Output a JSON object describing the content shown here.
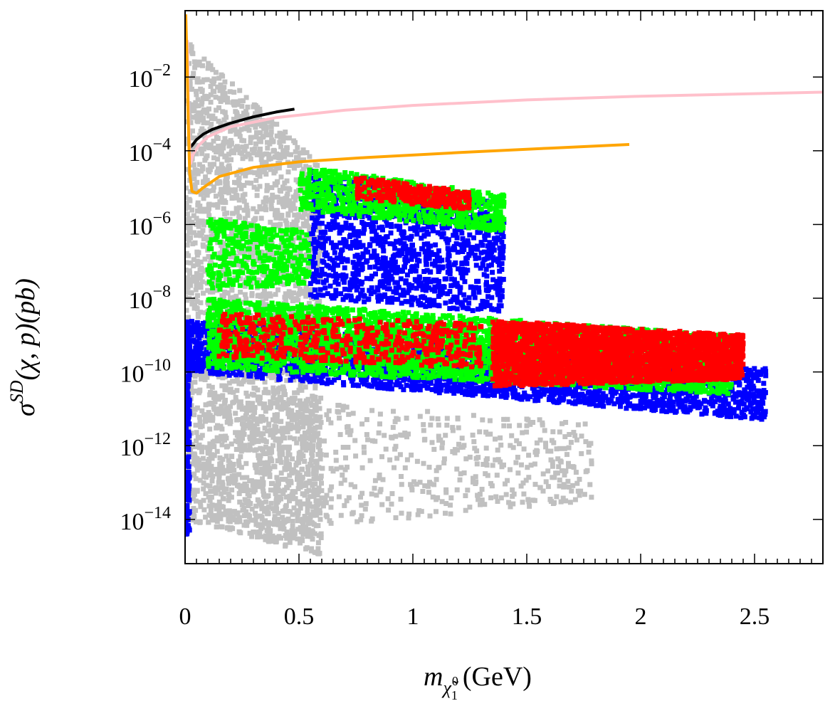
{
  "chart_data": {
    "type": "scatter",
    "title": "",
    "xlabel": {
      "base": "m",
      "sub": "χ̃",
      "subsub": "1",
      "supsub": "0",
      "unit": "(GeV)"
    },
    "ylabel": {
      "base": "σ",
      "sup": "SD",
      "rest": "(χ, p)(pb)"
    },
    "xlim": [
      0,
      2.8
    ],
    "ylim_log10": [
      -15.2,
      -0.2
    ],
    "x_ticks": [
      {
        "value": 0,
        "label": "0"
      },
      {
        "value": 0.5,
        "label": "0.5"
      },
      {
        "value": 1,
        "label": "1"
      },
      {
        "value": 1.5,
        "label": "1.5"
      },
      {
        "value": 2,
        "label": "2"
      },
      {
        "value": 2.5,
        "label": "2.5"
      }
    ],
    "y_ticks": [
      {
        "exp": -2,
        "base": "10",
        "sup": "−2"
      },
      {
        "exp": -4,
        "base": "10",
        "sup": "−4"
      },
      {
        "exp": -6,
        "base": "10",
        "sup": "−6"
      },
      {
        "exp": -8,
        "base": "10",
        "sup": "−8"
      },
      {
        "exp": -10,
        "base": "10",
        "sup": "−10"
      },
      {
        "exp": -12,
        "base": "10",
        "sup": "−12"
      },
      {
        "exp": -14,
        "base": "10",
        "sup": "−14"
      }
    ],
    "colors": {
      "gray": "#c0c0c0",
      "blue": "#0000ff",
      "green": "#00ff00",
      "red": "#ff0000",
      "black_curve": "#000000",
      "pink_curve": "#ffc0cb",
      "orange_curve": "#ffa500"
    },
    "scatter_regions": [
      {
        "name": "gray-spike",
        "color": "gray",
        "x": [
          0.002,
          0.6
        ],
        "y_top": [
          -1.0,
          -4.4
        ],
        "y_bot": [
          -14.0,
          -15.0
        ],
        "density": 2800
      },
      {
        "name": "gray-lower-tail",
        "color": "gray",
        "x": [
          0.1,
          1.8
        ],
        "y_top": [
          -10.6,
          -11.4
        ],
        "y_bot": [
          -14.5,
          -13.5
        ],
        "density": 600
      },
      {
        "name": "blue-upper-band",
        "color": "blue",
        "x": [
          0.55,
          1.4
        ],
        "y_top": [
          -4.5,
          -5.4
        ],
        "y_bot": [
          -8.0,
          -8.4
        ],
        "density": 1200
      },
      {
        "name": "blue-lower-band",
        "color": "blue",
        "x": [
          0.0,
          2.55
        ],
        "y_top": [
          -8.6,
          -9.9
        ],
        "y_bot": [
          -10.0,
          -11.3
        ],
        "density": 2600
      },
      {
        "name": "blue-left-edge",
        "color": "blue",
        "x": [
          0.0,
          0.02
        ],
        "y_top": [
          -8.6,
          -8.6
        ],
        "y_bot": [
          -14.5,
          -14.5
        ],
        "density": 200
      },
      {
        "name": "green-upper-band",
        "color": "green",
        "x": [
          0.5,
          1.4
        ],
        "y_top": [
          -4.4,
          -5.2
        ],
        "y_bot": [
          -5.6,
          -6.2
        ],
        "density": 700
      },
      {
        "name": "green-mid-cloud",
        "color": "green",
        "x": [
          0.1,
          0.55
        ],
        "y_top": [
          -5.8,
          -6.2
        ],
        "y_bot": [
          -7.8,
          -7.6
        ],
        "density": 350
      },
      {
        "name": "green-main-band",
        "color": "green",
        "x": [
          0.1,
          2.4
        ],
        "y_top": [
          -8.0,
          -9.0
        ],
        "y_bot": [
          -9.9,
          -10.6
        ],
        "density": 3000
      },
      {
        "name": "red-upper-band",
        "color": "red",
        "x": [
          0.75,
          1.25
        ],
        "y_top": [
          -4.7,
          -5.1
        ],
        "y_bot": [
          -5.3,
          -5.6
        ],
        "density": 260
      },
      {
        "name": "red-scatter-left",
        "color": "red",
        "x": [
          0.15,
          1.3
        ],
        "y_top": [
          -8.4,
          -8.7
        ],
        "y_bot": [
          -9.6,
          -9.9
        ],
        "density": 500
      },
      {
        "name": "red-dense-right",
        "color": "red",
        "x": [
          1.35,
          2.45
        ],
        "y_top": [
          -8.6,
          -9.0
        ],
        "y_bot": [
          -10.4,
          -10.2
        ],
        "density": 2600
      }
    ],
    "series": [
      {
        "name": "black-limit",
        "color": "black_curve",
        "points": [
          [
            0.018,
            -3.93
          ],
          [
            0.03,
            -3.86
          ],
          [
            0.05,
            -3.7
          ],
          [
            0.08,
            -3.55
          ],
          [
            0.12,
            -3.42
          ],
          [
            0.2,
            -3.25
          ],
          [
            0.3,
            -3.08
          ],
          [
            0.4,
            -2.95
          ],
          [
            0.48,
            -2.87
          ]
        ]
      },
      {
        "name": "pink-limit",
        "color": "pink_curve",
        "points": [
          [
            0.01,
            -1.0
          ],
          [
            0.014,
            -2.5
          ],
          [
            0.018,
            -3.6
          ],
          [
            0.024,
            -4.35
          ],
          [
            0.035,
            -4.1
          ],
          [
            0.06,
            -3.85
          ],
          [
            0.1,
            -3.62
          ],
          [
            0.2,
            -3.35
          ],
          [
            0.4,
            -3.1
          ],
          [
            0.7,
            -2.9
          ],
          [
            1.0,
            -2.77
          ],
          [
            1.5,
            -2.62
          ],
          [
            2.0,
            -2.52
          ],
          [
            2.5,
            -2.45
          ],
          [
            2.8,
            -2.41
          ]
        ]
      },
      {
        "name": "orange-limit",
        "color": "orange_curve",
        "points": [
          [
            0.003,
            -0.3
          ],
          [
            0.008,
            -1.5
          ],
          [
            0.014,
            -3.2
          ],
          [
            0.02,
            -4.6
          ],
          [
            0.03,
            -5.1
          ],
          [
            0.05,
            -5.15
          ],
          [
            0.08,
            -5.0
          ],
          [
            0.15,
            -4.7
          ],
          [
            0.3,
            -4.45
          ],
          [
            0.5,
            -4.3
          ],
          [
            0.8,
            -4.18
          ],
          [
            1.2,
            -4.05
          ],
          [
            1.6,
            -3.93
          ],
          [
            1.95,
            -3.83
          ]
        ]
      }
    ]
  }
}
